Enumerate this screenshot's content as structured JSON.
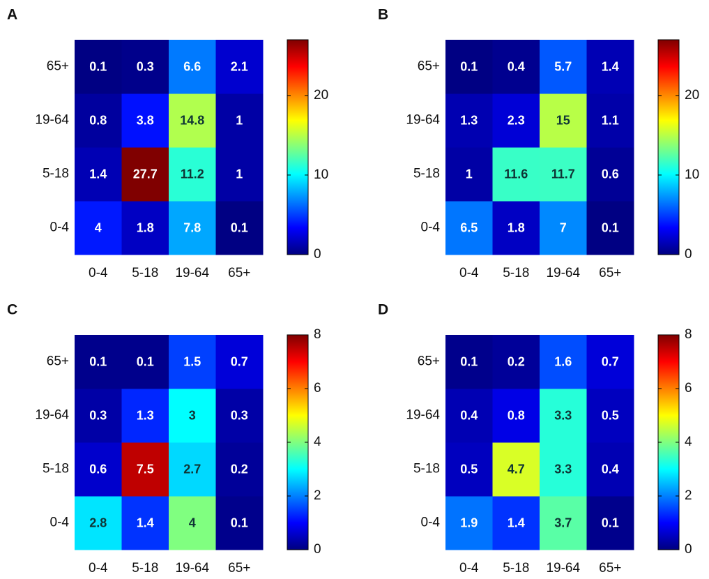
{
  "chart_data": [
    {
      "type": "heatmap",
      "title": "A",
      "colormap": "jet",
      "x_categories": [
        "0-4",
        "5-18",
        "19-64",
        "65+"
      ],
      "y_categories": [
        "0-4",
        "5-18",
        "19-64",
        "65+"
      ],
      "values": [
        [
          4,
          1.8,
          7.8,
          0.1
        ],
        [
          1.4,
          27.7,
          11.2,
          1
        ],
        [
          0.8,
          3.8,
          14.8,
          1
        ],
        [
          0.1,
          0.3,
          6.6,
          2.1
        ]
      ],
      "clim": [
        0,
        27
      ],
      "cticks": [
        0,
        10,
        20
      ]
    },
    {
      "type": "heatmap",
      "title": "B",
      "colormap": "jet",
      "x_categories": [
        "0-4",
        "5-18",
        "19-64",
        "65+"
      ],
      "y_categories": [
        "0-4",
        "5-18",
        "19-64",
        "65+"
      ],
      "values": [
        [
          6.5,
          1.8,
          7,
          0.1
        ],
        [
          1,
          11.6,
          11.7,
          0.6
        ],
        [
          1.3,
          2.3,
          15,
          1.1
        ],
        [
          0.1,
          0.4,
          5.7,
          1.4
        ]
      ],
      "clim": [
        0,
        27
      ],
      "cticks": [
        0,
        10,
        20
      ]
    },
    {
      "type": "heatmap",
      "title": "C",
      "colormap": "jet",
      "x_categories": [
        "0-4",
        "5-18",
        "19-64",
        "65+"
      ],
      "y_categories": [
        "0-4",
        "5-18",
        "19-64",
        "65+"
      ],
      "values": [
        [
          2.8,
          1.4,
          4,
          0.1
        ],
        [
          0.6,
          7.5,
          2.7,
          0.2
        ],
        [
          0.3,
          1.3,
          3,
          0.3
        ],
        [
          0.1,
          0.1,
          1.5,
          0.7
        ]
      ],
      "clim": [
        0,
        8
      ],
      "cticks": [
        0,
        2,
        4,
        6,
        8
      ]
    },
    {
      "type": "heatmap",
      "title": "D",
      "colormap": "jet",
      "x_categories": [
        "0-4",
        "5-18",
        "19-64",
        "65+"
      ],
      "y_categories": [
        "0-4",
        "5-18",
        "19-64",
        "65+"
      ],
      "values": [
        [
          1.9,
          1.4,
          3.7,
          0.1
        ],
        [
          0.5,
          4.7,
          3.3,
          0.4
        ],
        [
          0.4,
          0.8,
          3.3,
          0.5
        ],
        [
          0.1,
          0.2,
          1.6,
          0.7
        ]
      ],
      "clim": [
        0,
        8
      ],
      "cticks": [
        0,
        2,
        4,
        6,
        8
      ]
    }
  ]
}
